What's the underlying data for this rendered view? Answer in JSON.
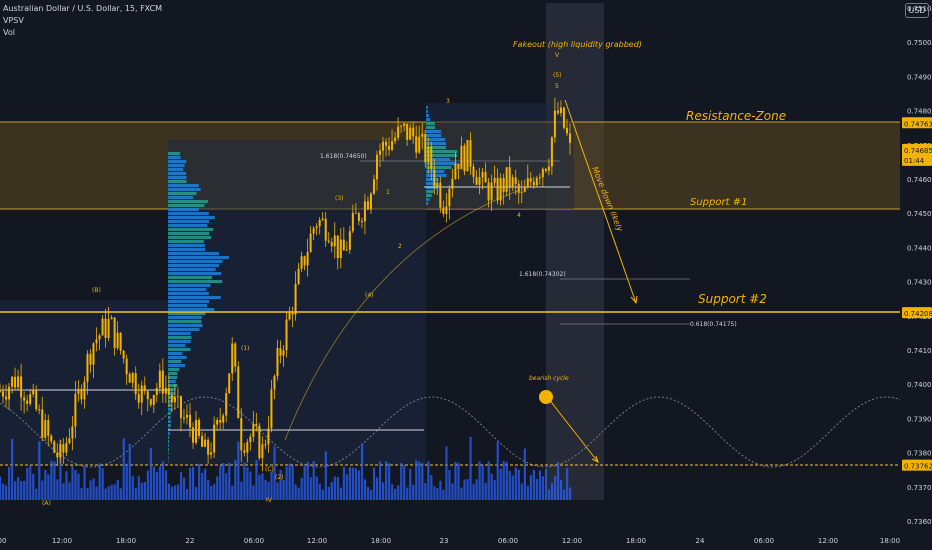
{
  "header": {
    "symbol": "Australian Dollar / U.S. Dollar, 15, FXCM",
    "indicator_1": "VPSV",
    "indicator_2": "Vol",
    "currency": "USD"
  },
  "colors": {
    "background": "#131722",
    "candle": "#f5b301",
    "zone_fill": "#5c4a1e",
    "zone_line": "#c9a227",
    "support_line": "#f5c531",
    "volume_bar": "#2962ff",
    "profile_bar": "#1e88e5",
    "profile_alt": "#26a69a",
    "text": "#d1d4dc",
    "annotation": "#f5b301",
    "cycle_line": "#787b86"
  },
  "chart_data": {
    "type": "line",
    "title": "",
    "xlabel": "",
    "ylabel": "",
    "y_range": [
      0.7358,
      0.7518
    ],
    "x_tick_labels": [
      "00",
      "12:00",
      "18:00",
      "22",
      "06:00",
      "12:00",
      "18:00",
      "23",
      "06:00",
      "12:00",
      "18:00",
      "24",
      "06:00",
      "12:00",
      "18:00"
    ],
    "y_tick_labels": [
      "0.75100",
      "0.75000",
      "0.74900",
      "0.74800",
      "0.74700",
      "0.74600",
      "0.74500",
      "0.74400",
      "0.74300",
      "0.74200",
      "0.74100",
      "0.74000",
      "0.73900",
      "0.73800",
      "0.73700",
      "0.73600"
    ],
    "price_labels": [
      {
        "value": 0.74763,
        "text": "0.74763"
      },
      {
        "value": 0.74685,
        "text": "0.74685",
        "sub": "01:44"
      },
      {
        "value": 0.74208,
        "text": "0.74208"
      },
      {
        "value": 0.73762,
        "text": "0.73762"
      }
    ],
    "price_path": [
      {
        "t": 0,
        "p": 0.7398
      },
      {
        "t": 0.04,
        "p": 0.7402
      },
      {
        "t": 0.08,
        "p": 0.7393
      },
      {
        "t": 0.12,
        "p": 0.7381
      },
      {
        "t": 0.14,
        "p": 0.7378
      },
      {
        "t": 0.17,
        "p": 0.7392
      },
      {
        "t": 0.21,
        "p": 0.7412
      },
      {
        "t": 0.25,
        "p": 0.7418
      },
      {
        "t": 0.29,
        "p": 0.7405
      },
      {
        "t": 0.33,
        "p": 0.7396
      },
      {
        "t": 0.37,
        "p": 0.7401
      },
      {
        "t": 0.41,
        "p": 0.7391
      },
      {
        "t": 0.44,
        "p": 0.7387
      },
      {
        "t": 0.47,
        "p": 0.7379
      },
      {
        "t": 0.5,
        "p": 0.7388
      },
      {
        "t": 0.53,
        "p": 0.741
      },
      {
        "t": 0.55,
        "p": 0.7384
      },
      {
        "t": 0.58,
        "p": 0.7385
      },
      {
        "t": 0.6,
        "p": 0.738
      },
      {
        "t": 0.63,
        "p": 0.7405
      },
      {
        "t": 0.66,
        "p": 0.742
      },
      {
        "t": 0.69,
        "p": 0.7435
      },
      {
        "t": 0.72,
        "p": 0.7448
      },
      {
        "t": 0.75,
        "p": 0.7446
      },
      {
        "t": 0.78,
        "p": 0.7437
      },
      {
        "t": 0.81,
        "p": 0.7448
      },
      {
        "t": 0.84,
        "p": 0.7455
      },
      {
        "t": 0.86,
        "p": 0.7468
      },
      {
        "t": 0.89,
        "p": 0.7471
      },
      {
        "t": 0.92,
        "p": 0.7474
      },
      {
        "t": 0.95,
        "p": 0.7472
      },
      {
        "t": 0.98,
        "p": 0.7465
      },
      {
        "t": 1.01,
        "p": 0.7453
      },
      {
        "t": 1.04,
        "p": 0.7466
      },
      {
        "t": 1.07,
        "p": 0.7467
      },
      {
        "t": 1.1,
        "p": 0.7458
      },
      {
        "t": 1.13,
        "p": 0.7456
      },
      {
        "t": 1.16,
        "p": 0.746
      },
      {
        "t": 1.19,
        "p": 0.7454
      },
      {
        "t": 1.22,
        "p": 0.7462
      },
      {
        "t": 1.25,
        "p": 0.7466
      },
      {
        "t": 1.27,
        "p": 0.748
      },
      {
        "t": 1.29,
        "p": 0.7474
      },
      {
        "t": 1.3,
        "p": 0.7468
      }
    ],
    "zones": [
      {
        "name": "Resistance-Zone",
        "from": 0.7451,
        "to": 0.74763,
        "label": "Resistance-Zone"
      }
    ],
    "hlines": [
      {
        "value": 0.74208,
        "label": "Support #2"
      },
      {
        "value": 0.73762,
        "label": ""
      }
    ],
    "fib_labels": [
      {
        "text": "1.618(0.74650)",
        "value": 0.7465
      },
      {
        "text": "1.618(0.74302)",
        "value": 0.74302
      },
      {
        "text": "0.618(0.74175)",
        "value": 0.74175
      }
    ],
    "wave_labels": [
      "(B)",
      "(A)",
      "(1)",
      "(C)",
      "(2)",
      "(3)",
      "(4)",
      "1",
      "2",
      "3",
      "4",
      "5",
      "(5)",
      "V",
      "IV"
    ],
    "annotations": [
      {
        "id": "fakeout",
        "text": "Fakeout (high liquidity grabbed)"
      },
      {
        "id": "resistance",
        "text": "Resistance-Zone"
      },
      {
        "id": "support1",
        "text": "Support #1"
      },
      {
        "id": "support2",
        "text": "Support #2"
      },
      {
        "id": "move-down",
        "text": "Move down likely"
      },
      {
        "id": "bearish-cycle",
        "text": "bearish cycle"
      }
    ]
  }
}
